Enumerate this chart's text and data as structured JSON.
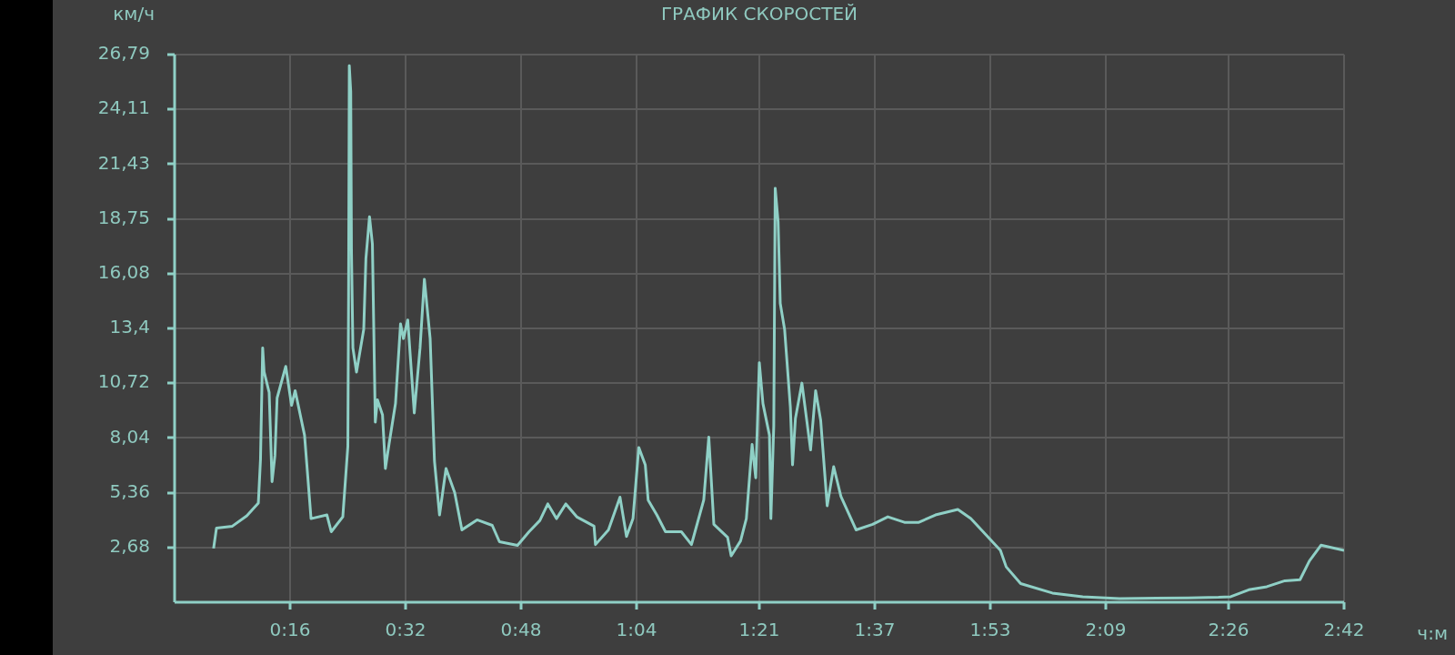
{
  "chart_data": {
    "type": "line",
    "title": "ГРАФИК СКОРОСТЕЙ",
    "ylabel": "км/ч",
    "xlabel": "ч:м",
    "color": "#8fd0c6",
    "grid": true,
    "xlim": [
      0,
      162
    ],
    "ylim": [
      0,
      26.79
    ],
    "xticks": [
      {
        "value": 16,
        "label": "0:16"
      },
      {
        "value": 32,
        "label": "0:32"
      },
      {
        "value": 48,
        "label": "0:48"
      },
      {
        "value": 64,
        "label": "1:04"
      },
      {
        "value": 81,
        "label": "1:21"
      },
      {
        "value": 97,
        "label": "1:37"
      },
      {
        "value": 113,
        "label": "1:53"
      },
      {
        "value": 129,
        "label": "2:09"
      },
      {
        "value": 146,
        "label": "2:26"
      },
      {
        "value": 162,
        "label": "2:42"
      }
    ],
    "yticks": [
      {
        "value": 2.68,
        "label": "2,68"
      },
      {
        "value": 5.36,
        "label": "5,36"
      },
      {
        "value": 8.04,
        "label": "8,04"
      },
      {
        "value": 10.72,
        "label": "10,72"
      },
      {
        "value": 13.4,
        "label": "13,4"
      },
      {
        "value": 16.08,
        "label": "16,08"
      },
      {
        "value": 18.75,
        "label": "18,75"
      },
      {
        "value": 21.43,
        "label": "21,43"
      },
      {
        "value": 24.11,
        "label": "24,11"
      },
      {
        "value": 26.79,
        "label": "26,79"
      }
    ],
    "x": [
      5.4,
      5.8,
      8.0,
      10.0,
      11.6,
      11.9,
      12.2,
      12.4,
      13.1,
      13.5,
      13.9,
      14.2,
      15.4,
      16.2,
      16.7,
      18.0,
      18.7,
      18.9,
      21.1,
      21.7,
      23.3,
      24.0,
      24.1,
      24.2,
      24.4,
      24.5,
      24.7,
      25.2,
      26.2,
      26.5,
      27.0,
      27.4,
      27.8,
      28.1,
      28.8,
      29.2,
      29.7,
      30.6,
      31.3,
      31.7,
      32.3,
      33.2,
      34.0,
      34.6,
      35.4,
      36.0,
      36.7,
      37.6,
      38.8,
      39.8,
      41.9,
      44.0,
      45.0,
      47.5,
      49.1,
      50.6,
      51.7,
      52.9,
      54.2,
      55.7,
      58.1,
      58.3,
      60.1,
      61.7,
      62.6,
      63.5,
      64.3,
      65.2,
      65.6,
      66.8,
      68.0,
      70.2,
      71.6,
      73.3,
      74.0,
      74.7,
      76.6,
      77.1,
      78.4,
      79.2,
      80.0,
      80.5,
      81.0,
      81.5,
      82.4,
      82.6,
      83.0,
      83.2,
      83.6,
      83.9,
      84.5,
      85.3,
      85.6,
      86.0,
      86.9,
      88.1,
      88.8,
      89.5,
      90.4,
      91.3,
      92.3,
      94.4,
      96.7,
      98.8,
      101.1,
      103.1,
      105.4,
      108.5,
      110.3,
      114.4,
      115.2,
      117.2,
      121.6,
      125.8,
      130.9,
      140.4,
      144.6,
      146.3,
      148.8,
      151.3,
      153.8,
      155.9,
      157.2,
      158.8,
      162.0
    ],
    "values": [
      2.63,
      3.63,
      3.72,
      4.23,
      4.85,
      6.99,
      12.44,
      11.26,
      10.26,
      5.9,
      7.18,
      9.99,
      11.54,
      9.63,
      10.35,
      8.17,
      5.0,
      4.09,
      4.27,
      3.45,
      4.18,
      7.63,
      14.99,
      26.25,
      24.98,
      17.17,
      12.44,
      11.26,
      13.35,
      16.8,
      18.86,
      17.53,
      8.81,
      9.9,
      9.17,
      6.54,
      7.72,
      9.72,
      13.62,
      12.9,
      13.81,
      9.26,
      12.44,
      15.8,
      12.9,
      6.9,
      4.27,
      6.54,
      5.36,
      3.54,
      4.03,
      3.76,
      2.96,
      2.78,
      3.45,
      4.0,
      4.81,
      4.09,
      4.81,
      4.18,
      3.72,
      2.82,
      3.54,
      5.14,
      3.22,
      4.09,
      7.57,
      6.72,
      5.0,
      4.27,
      3.45,
      3.45,
      2.82,
      5.0,
      8.08,
      3.81,
      3.18,
      2.27,
      3.0,
      4.09,
      7.72,
      6.09,
      11.72,
      9.72,
      8.17,
      4.09,
      8.63,
      20.25,
      18.62,
      14.62,
      13.35,
      9.54,
      6.72,
      8.99,
      10.72,
      7.45,
      10.35,
      8.9,
      4.72,
      6.63,
      5.18,
      3.54,
      3.81,
      4.18,
      3.91,
      3.91,
      4.27,
      4.54,
      4.09,
      2.54,
      1.73,
      0.91,
      0.45,
      0.27,
      0.18,
      0.21,
      0.24,
      0.27,
      0.61,
      0.76,
      1.05,
      1.1,
      2.02,
      2.79,
      2.53
    ]
  }
}
